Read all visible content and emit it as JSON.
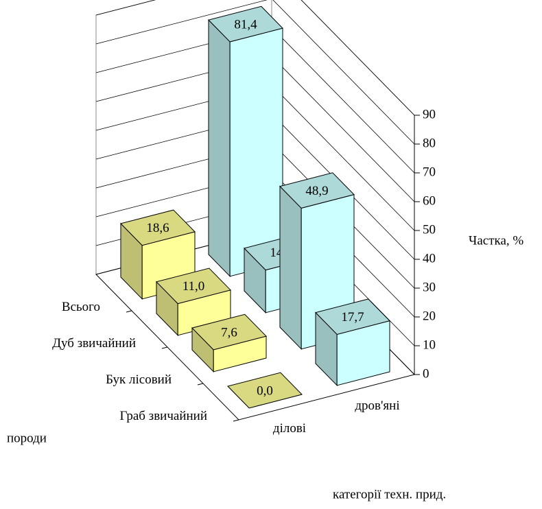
{
  "chart_data": {
    "type": "bar3d",
    "x_label": "породи",
    "series_label": "категорії техн. прид.",
    "y_label": "Частка, %",
    "categories": [
      "Всього",
      "Дуб звичайний",
      "Бук лісовий",
      "Граб звичайний"
    ],
    "series": [
      {
        "name": "ділові",
        "color": "#ffff99",
        "values": [
          18.6,
          11.0,
          7.6,
          0.0
        ],
        "value_labels": [
          "18,6",
          "11,0",
          "7,6",
          "0,0"
        ]
      },
      {
        "name": "дров'яні",
        "color": "#ccffff",
        "values": [
          81.4,
          14.8,
          48.9,
          17.7
        ],
        "value_labels": [
          "81,4",
          "14,8",
          "48,9",
          "17,7"
        ]
      }
    ],
    "ylim": [
      0,
      90
    ],
    "yticks": [
      0,
      10,
      20,
      30,
      40,
      50,
      60,
      70,
      80,
      90
    ],
    "grid": true
  }
}
